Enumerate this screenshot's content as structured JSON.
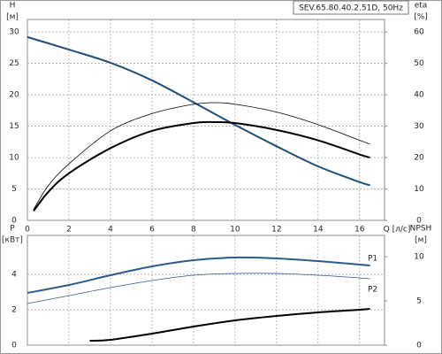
{
  "chart_data": [
    {
      "type": "line",
      "title": "SEV.65.80.40.2.51D, 50Hz",
      "xlabel": "Q [л/с]",
      "ylabel": [
        "H",
        "[м]"
      ],
      "y2label": [
        "eta",
        "[%]"
      ],
      "xlim": [
        0,
        17.2
      ],
      "xticks": [
        0,
        2,
        4,
        6,
        8,
        10,
        12,
        14,
        16
      ],
      "show_xtick_labels": true,
      "ylim": [
        0,
        32
      ],
      "yticks": [
        0,
        5,
        10,
        15,
        20,
        25,
        30
      ],
      "y2lim": [
        0,
        64
      ],
      "y2ticks": [
        0,
        10,
        20,
        30,
        40,
        50,
        60
      ],
      "grid": true,
      "series": [
        {
          "color": "#1d4f7c",
          "style": "thick",
          "x": [
            0,
            2,
            4,
            6,
            8,
            10,
            12,
            14,
            16,
            16.5
          ],
          "values": [
            29.2,
            27.2,
            25.1,
            22.3,
            18.8,
            15.2,
            11.8,
            8.6,
            6.1,
            5.6
          ]
        },
        {
          "color": "#000000",
          "style": "thin",
          "axis": "y2",
          "x": [
            0.3,
            1,
            2,
            4,
            6,
            8,
            9,
            10,
            12,
            14,
            16,
            16.5
          ],
          "values": [
            3.5,
            11,
            18,
            28.5,
            34,
            37,
            37.5,
            37,
            34.5,
            30.5,
            25.5,
            24.3
          ]
        },
        {
          "color": "#000000",
          "style": "thick",
          "axis": "y2",
          "x": [
            0.3,
            1,
            2,
            4,
            6,
            8,
            9,
            10,
            12,
            14,
            16,
            16.5
          ],
          "values": [
            3,
            9,
            15,
            23,
            28.5,
            31,
            31.3,
            31,
            28.8,
            25.5,
            21,
            20
          ]
        }
      ]
    },
    {
      "type": "line",
      "ylabel": [
        "P",
        "[кВт]"
      ],
      "y2label": [
        "NPSH",
        "[м]"
      ],
      "xlim": [
        0,
        17.2
      ],
      "xticks": [
        0,
        2,
        4,
        6,
        8,
        10,
        12,
        14,
        16
      ],
      "show_xtick_labels": false,
      "ylim": [
        0,
        6.2
      ],
      "yticks": [
        0,
        2,
        4
      ],
      "y2lim": [
        0,
        12.4
      ],
      "y2ticks": [
        0,
        5,
        10
      ],
      "grid": true,
      "series": [
        {
          "name": "P1",
          "color": "#2a5b8a",
          "style": "thick",
          "x": [
            0,
            2,
            4,
            6,
            8,
            10,
            12,
            14,
            16,
            16.5
          ],
          "values": [
            2.95,
            3.4,
            3.95,
            4.45,
            4.8,
            4.95,
            4.9,
            4.75,
            4.55,
            4.5
          ]
        },
        {
          "name": "P2",
          "color": "#2a5b8a",
          "style": "thin",
          "x": [
            0,
            2,
            4,
            6,
            8,
            10,
            12,
            14,
            16,
            16.5
          ],
          "values": [
            2.35,
            2.8,
            3.25,
            3.65,
            3.95,
            4.05,
            4.05,
            3.95,
            3.8,
            3.75
          ]
        },
        {
          "color": "#000000",
          "style": "thick",
          "axis": "y2",
          "x": [
            3,
            4,
            6,
            8,
            10,
            12,
            14,
            16,
            16.5
          ],
          "values": [
            0.5,
            0.6,
            1.3,
            2.1,
            2.8,
            3.3,
            3.7,
            4.0,
            4.1
          ]
        }
      ]
    }
  ]
}
